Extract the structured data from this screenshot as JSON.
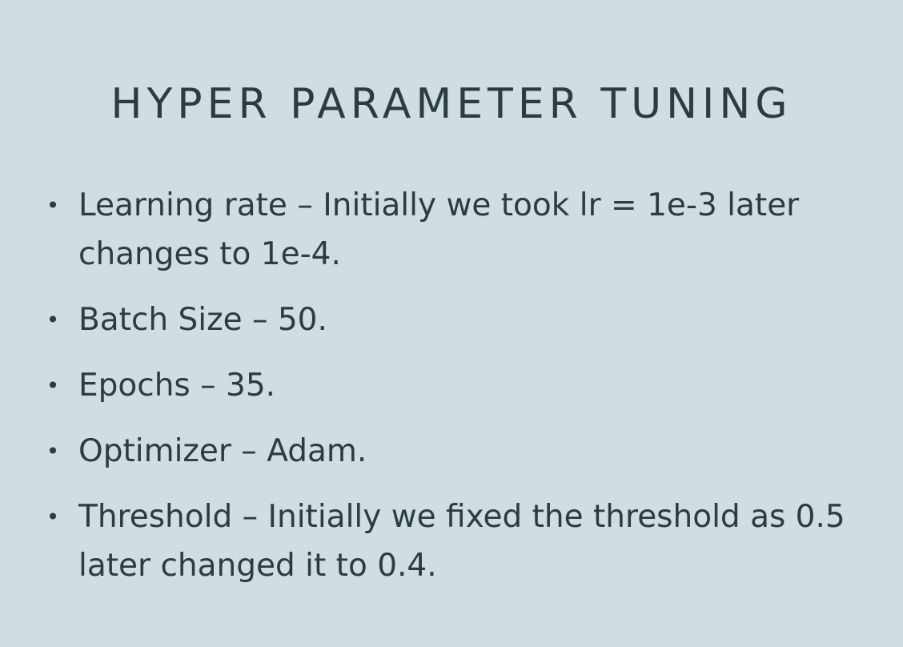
{
  "slide": {
    "title": "HYPER PARAMETER TUNING",
    "bullet_glyph": "•",
    "bullets": [
      "Learning rate – Initially we took lr = 1e-3 later changes to 1e-4.",
      "Batch Size – 50.",
      "Epochs – 35.",
      "Optimizer – Adam.",
      "Threshold – Initially we fixed the threshold as 0.5 later changed it to 0.4."
    ]
  }
}
